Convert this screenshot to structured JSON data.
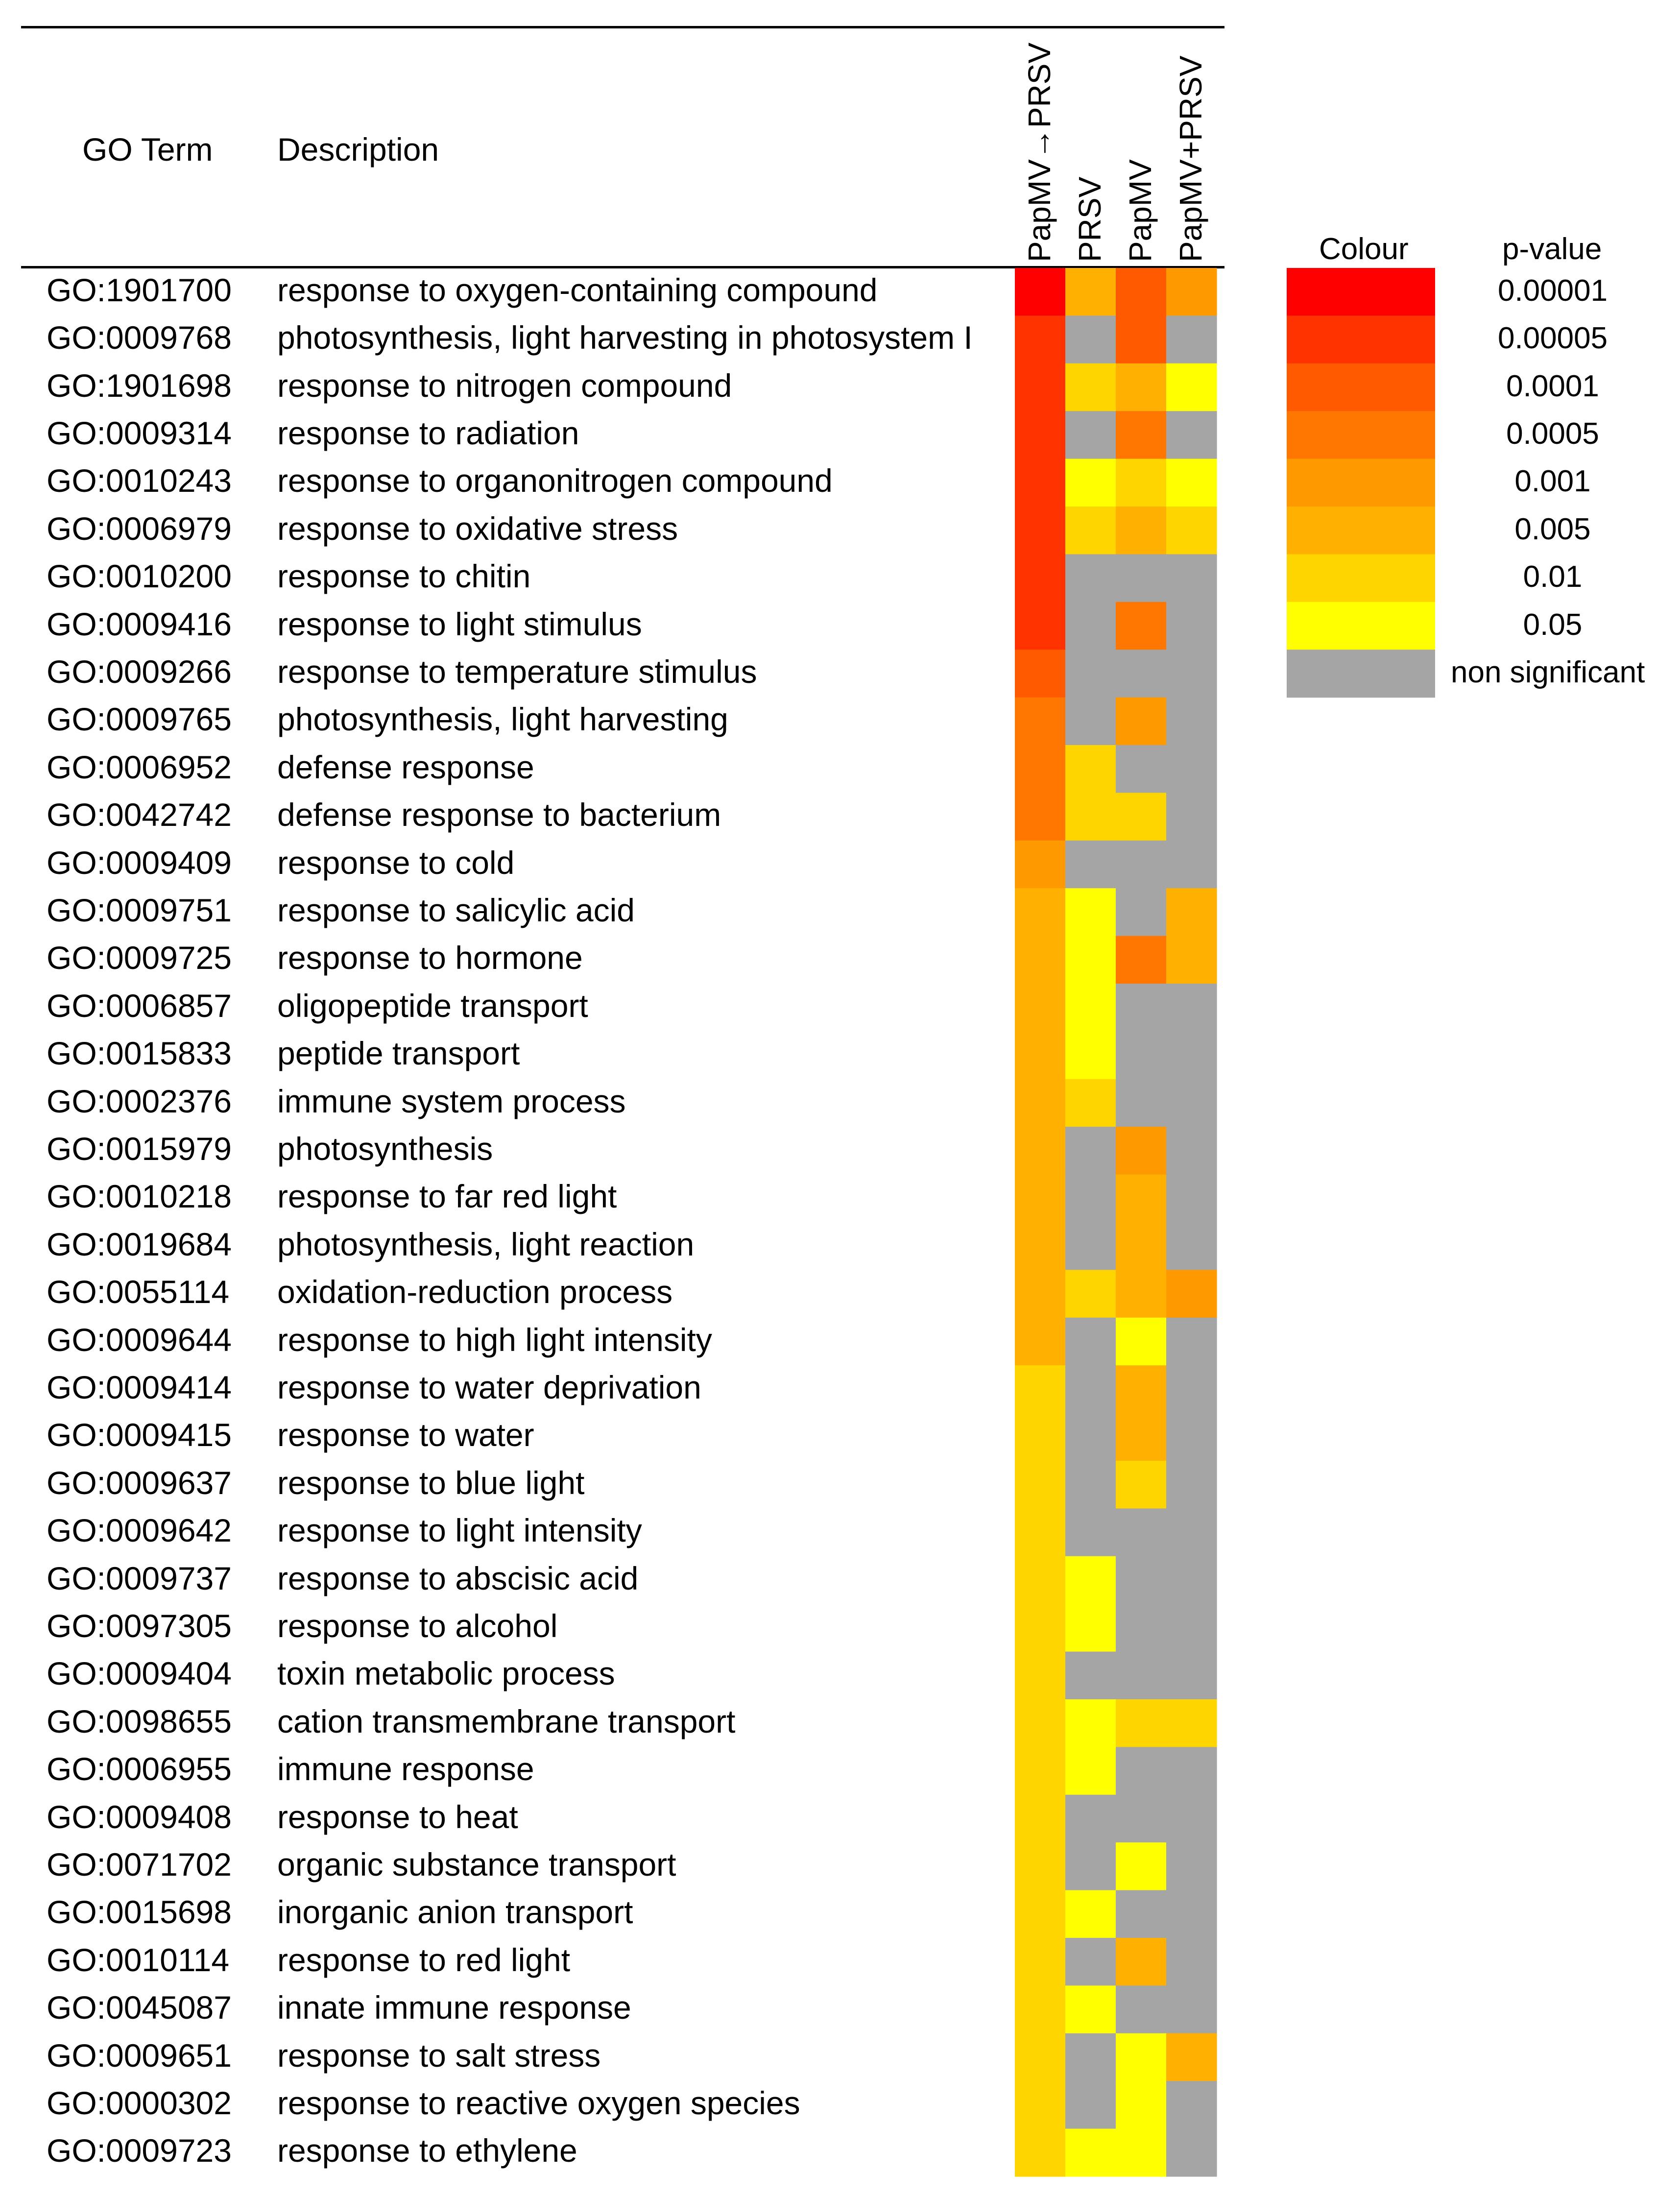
{
  "chart_data": {
    "type": "heatmap",
    "columns": [
      "PapMV→PRSV",
      "PRSV",
      "PapMV",
      "PapMV+PRSV"
    ],
    "row_header": "GO Term",
    "description_header": "Description",
    "legend": {
      "colour_header": "Colour",
      "pvalue_header": "p-value",
      "items": [
        {
          "label": "0.00001",
          "color": "#FF0000"
        },
        {
          "label": "0.00005",
          "color": "#FF3300"
        },
        {
          "label": "0.0001",
          "color": "#FF5A00"
        },
        {
          "label": "0.0005",
          "color": "#FF7700"
        },
        {
          "label": "0.001",
          "color": "#FF9900"
        },
        {
          "label": "0.005",
          "color": "#FFB000"
        },
        {
          "label": "0.01",
          "color": "#FFD500"
        },
        {
          "label": "0.05",
          "color": "#FFFF00"
        },
        {
          "label": "non significant",
          "color": "#A5A5A5"
        }
      ]
    },
    "rows": [
      {
        "go": "GO:1901700",
        "desc": "response to oxygen-containing compound",
        "levels": [
          0,
          5,
          2,
          4
        ]
      },
      {
        "go": "GO:0009768",
        "desc": "photosynthesis, light harvesting in photosystem I",
        "levels": [
          1,
          8,
          2,
          8
        ]
      },
      {
        "go": "GO:1901698",
        "desc": "response to nitrogen compound",
        "levels": [
          1,
          6,
          5,
          7
        ]
      },
      {
        "go": "GO:0009314",
        "desc": "response to radiation",
        "levels": [
          1,
          8,
          3,
          8
        ]
      },
      {
        "go": "GO:0010243",
        "desc": "response to organonitrogen compound",
        "levels": [
          1,
          7,
          6,
          7
        ]
      },
      {
        "go": "GO:0006979",
        "desc": "response to oxidative stress",
        "levels": [
          1,
          6,
          5,
          6
        ]
      },
      {
        "go": "GO:0010200",
        "desc": "response to chitin",
        "levels": [
          1,
          8,
          8,
          8
        ]
      },
      {
        "go": "GO:0009416",
        "desc": "response to light stimulus",
        "levels": [
          1,
          8,
          3,
          8
        ]
      },
      {
        "go": "GO:0009266",
        "desc": "response to temperature stimulus",
        "levels": [
          2,
          8,
          8,
          8
        ]
      },
      {
        "go": "GO:0009765",
        "desc": "photosynthesis, light harvesting",
        "levels": [
          3,
          8,
          4,
          8
        ]
      },
      {
        "go": "GO:0006952",
        "desc": "defense response",
        "levels": [
          3,
          6,
          8,
          8
        ]
      },
      {
        "go": "GO:0042742",
        "desc": "defense response to bacterium",
        "levels": [
          3,
          6,
          6,
          8
        ]
      },
      {
        "go": "GO:0009409",
        "desc": "response to cold",
        "levels": [
          4,
          8,
          8,
          8
        ]
      },
      {
        "go": "GO:0009751",
        "desc": "response to salicylic acid",
        "levels": [
          5,
          7,
          8,
          5
        ]
      },
      {
        "go": "GO:0009725",
        "desc": "response to hormone",
        "levels": [
          5,
          7,
          3,
          5
        ]
      },
      {
        "go": "GO:0006857",
        "desc": "oligopeptide transport",
        "levels": [
          5,
          7,
          8,
          8
        ]
      },
      {
        "go": "GO:0015833",
        "desc": "peptide transport",
        "levels": [
          5,
          7,
          8,
          8
        ]
      },
      {
        "go": "GO:0002376",
        "desc": "immune system process",
        "levels": [
          5,
          6,
          8,
          8
        ]
      },
      {
        "go": "GO:0015979",
        "desc": "photosynthesis",
        "levels": [
          5,
          8,
          4,
          8
        ]
      },
      {
        "go": "GO:0010218",
        "desc": "response to far red light",
        "levels": [
          5,
          8,
          5,
          8
        ]
      },
      {
        "go": "GO:0019684",
        "desc": "photosynthesis, light reaction",
        "levels": [
          5,
          8,
          5,
          8
        ]
      },
      {
        "go": "GO:0055114",
        "desc": "oxidation-reduction process",
        "levels": [
          5,
          6,
          5,
          4
        ]
      },
      {
        "go": "GO:0009644",
        "desc": "response to high light intensity",
        "levels": [
          5,
          8,
          7,
          8
        ]
      },
      {
        "go": "GO:0009414",
        "desc": "response to water deprivation",
        "levels": [
          6,
          8,
          5,
          8
        ]
      },
      {
        "go": "GO:0009415",
        "desc": "response to water",
        "levels": [
          6,
          8,
          5,
          8
        ]
      },
      {
        "go": "GO:0009637",
        "desc": "response to blue light",
        "levels": [
          6,
          8,
          6,
          8
        ]
      },
      {
        "go": "GO:0009642",
        "desc": "response to light intensity",
        "levels": [
          6,
          8,
          8,
          8
        ]
      },
      {
        "go": "GO:0009737",
        "desc": "response to abscisic acid",
        "levels": [
          6,
          7,
          8,
          8
        ]
      },
      {
        "go": "GO:0097305",
        "desc": "response to alcohol",
        "levels": [
          6,
          7,
          8,
          8
        ]
      },
      {
        "go": "GO:0009404",
        "desc": "toxin metabolic process",
        "levels": [
          6,
          8,
          8,
          8
        ]
      },
      {
        "go": "GO:0098655",
        "desc": "cation transmembrane transport",
        "levels": [
          6,
          7,
          6,
          6
        ]
      },
      {
        "go": "GO:0006955",
        "desc": "immune response",
        "levels": [
          6,
          7,
          8,
          8
        ]
      },
      {
        "go": "GO:0009408",
        "desc": "response to heat",
        "levels": [
          6,
          8,
          8,
          8
        ]
      },
      {
        "go": "GO:0071702",
        "desc": "organic substance transport",
        "levels": [
          6,
          8,
          7,
          8
        ]
      },
      {
        "go": "GO:0015698",
        "desc": "inorganic anion transport",
        "levels": [
          6,
          7,
          8,
          8
        ]
      },
      {
        "go": "GO:0010114",
        "desc": "response to red light",
        "levels": [
          6,
          8,
          5,
          8
        ]
      },
      {
        "go": "GO:0045087",
        "desc": "innate immune response",
        "levels": [
          6,
          7,
          8,
          8
        ]
      },
      {
        "go": "GO:0009651",
        "desc": "response to salt stress",
        "levels": [
          6,
          8,
          7,
          5
        ]
      },
      {
        "go": "GO:0000302",
        "desc": "response to reactive oxygen species",
        "levels": [
          6,
          8,
          7,
          8
        ]
      },
      {
        "go": "GO:0009723",
        "desc": "response to ethylene",
        "levels": [
          6,
          7,
          7,
          8
        ]
      }
    ]
  }
}
